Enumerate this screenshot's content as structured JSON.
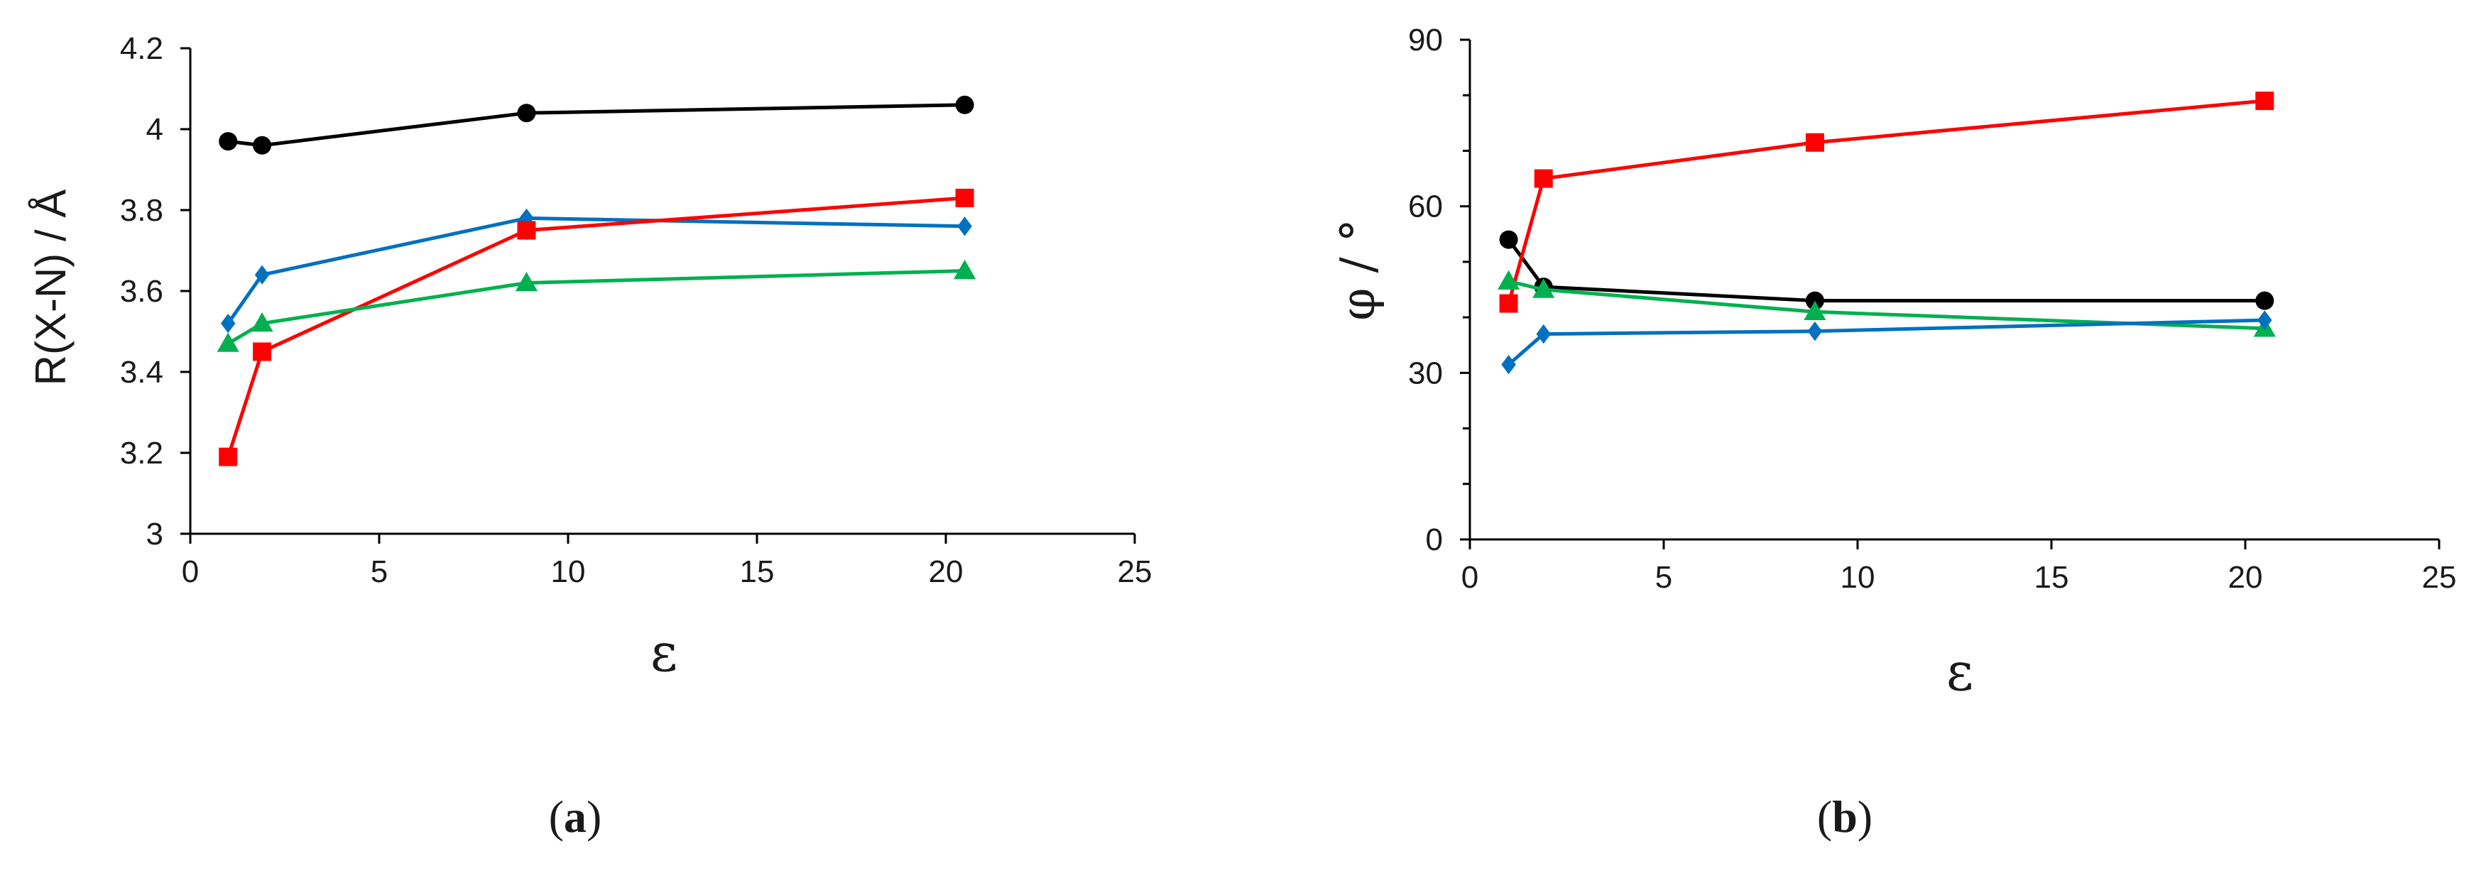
{
  "colors": {
    "black": "#000000",
    "red": "#ff0000",
    "blue": "#0070c0",
    "green": "#00b050",
    "axis": "#000000"
  },
  "chart_data": [
    {
      "type": "line",
      "panel_label": "(a)",
      "panel_letter": "a",
      "xlabel": "ε",
      "ylabel": "R(X-N) / Å",
      "xlim": [
        0,
        25
      ],
      "ylim": [
        3,
        4.2
      ],
      "x_ticks": [
        0,
        5,
        10,
        15,
        20,
        25
      ],
      "y_ticks": [
        3,
        3.2,
        3.4,
        3.6,
        3.8,
        4,
        4.2
      ],
      "x_tick_labels": [
        "0",
        "5",
        "10",
        "15",
        "20",
        "25"
      ],
      "y_tick_labels": [
        "3",
        "3.2",
        "3.4",
        "3.6",
        "3.8",
        "4",
        "4.2"
      ],
      "grid": false,
      "series": [
        {
          "color": "black",
          "marker": "circle",
          "x": [
            1,
            1.9,
            8.9,
            20.5
          ],
          "y": [
            3.97,
            3.96,
            4.04,
            4.06
          ]
        },
        {
          "color": "blue",
          "marker": "diamond",
          "x": [
            1,
            1.9,
            8.9,
            20.5
          ],
          "y": [
            3.52,
            3.64,
            3.78,
            3.76
          ]
        },
        {
          "color": "red",
          "marker": "square",
          "x": [
            1,
            1.9,
            8.9,
            20.5
          ],
          "y": [
            3.19,
            3.45,
            3.75,
            3.83
          ]
        },
        {
          "color": "green",
          "marker": "triangle",
          "x": [
            1,
            1.9,
            8.9,
            20.5
          ],
          "y": [
            3.47,
            3.52,
            3.62,
            3.65
          ]
        }
      ]
    },
    {
      "type": "line",
      "panel_label": "(b)",
      "panel_letter": "b",
      "xlabel": "ε",
      "ylabel": "φ / °",
      "xlim": [
        0,
        25
      ],
      "ylim": [
        0,
        90
      ],
      "x_ticks": [
        0,
        5,
        10,
        15,
        20,
        25
      ],
      "y_ticks": [
        0,
        30,
        60,
        90
      ],
      "y_minor_ticks": [
        10,
        20,
        40,
        50,
        70,
        80
      ],
      "x_tick_labels": [
        "0",
        "5",
        "10",
        "15",
        "20",
        "25"
      ],
      "y_tick_labels": [
        "0",
        "30",
        "60",
        "90"
      ],
      "grid": false,
      "series": [
        {
          "color": "black",
          "marker": "circle",
          "x": [
            1,
            1.9,
            8.9,
            20.5
          ],
          "y": [
            54,
            45.5,
            43,
            43
          ]
        },
        {
          "color": "red",
          "marker": "square",
          "x": [
            1,
            1.9,
            8.9,
            20.5
          ],
          "y": [
            42.5,
            65,
            71.5,
            79
          ]
        },
        {
          "color": "green",
          "marker": "triangle",
          "x": [
            1,
            1.9,
            8.9,
            20.5
          ],
          "y": [
            46.5,
            45,
            41,
            38
          ]
        },
        {
          "color": "blue",
          "marker": "diamond",
          "x": [
            1,
            1.9,
            8.9,
            20.5
          ],
          "y": [
            31.5,
            37,
            37.5,
            39.5
          ]
        }
      ]
    }
  ]
}
